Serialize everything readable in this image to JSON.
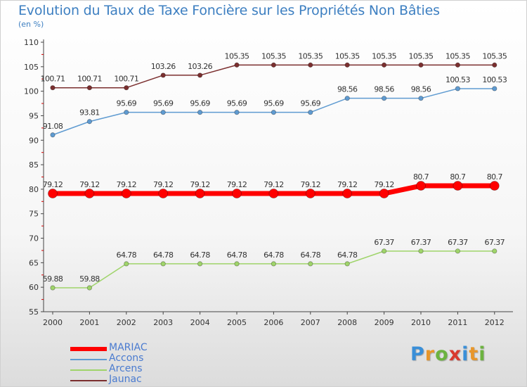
{
  "title": "Evolution du Taux de Taxe Foncière sur les Propriétés Non Bâties",
  "unit_label": "(en %)",
  "logo": {
    "letters": [
      "P",
      "r",
      "o",
      "x",
      "i",
      "t",
      "i"
    ],
    "colors": [
      "#3a8fd8",
      "#e8962a",
      "#6cb33f",
      "#d93a2f",
      "#3a8fd8",
      "#e8962a",
      "#6cb33f"
    ]
  },
  "chart_data": {
    "type": "line",
    "title": "Evolution du Taux de Taxe Foncière sur les Propriétés Non Bâties",
    "ylabel": "(en %)",
    "xlabel": "",
    "x": [
      "2000",
      "2001",
      "2002",
      "2003",
      "2004",
      "2005",
      "2006",
      "2007",
      "2008",
      "2009",
      "2010",
      "2011",
      "2012"
    ],
    "ylim": [
      55,
      110
    ],
    "yticks": [
      "55",
      "60",
      "65",
      "70",
      "75",
      "80",
      "85",
      "90",
      "95",
      "100",
      "105",
      "110"
    ],
    "grid": false,
    "legend_position": "bottom-left",
    "series": [
      {
        "name": "MARIAC",
        "color": "#ff0000",
        "values": [
          79.12,
          79.12,
          79.12,
          79.12,
          79.12,
          79.12,
          79.12,
          79.12,
          79.12,
          79.12,
          80.7,
          80.7,
          80.7
        ],
        "labels": [
          "79.12",
          "79.12",
          "79.12",
          "79.12",
          "79.12",
          "79.12",
          "79.12",
          "79.12",
          "79.12",
          "79.12",
          "80.7",
          "80.7",
          "80.7"
        ]
      },
      {
        "name": "Accons",
        "color": "#5f9bd1",
        "values": [
          91.08,
          93.81,
          95.69,
          95.69,
          95.69,
          95.69,
          95.69,
          95.69,
          98.56,
          98.56,
          98.56,
          100.53,
          100.53
        ],
        "labels": [
          "91.08",
          "93.81",
          "95.69",
          "95.69",
          "95.69",
          "95.69",
          "95.69",
          "95.69",
          "98.56",
          "98.56",
          "98.56",
          "100.53",
          "100.53"
        ]
      },
      {
        "name": "Arcens",
        "color": "#9fd46a",
        "values": [
          59.88,
          59.88,
          64.78,
          64.78,
          64.78,
          64.78,
          64.78,
          64.78,
          64.78,
          67.37,
          67.37,
          67.37,
          67.37
        ],
        "labels": [
          "59.88",
          "59.88",
          "64.78",
          "64.78",
          "64.78",
          "64.78",
          "64.78",
          "64.78",
          "64.78",
          "67.37",
          "67.37",
          "67.37",
          "67.37"
        ]
      },
      {
        "name": "Jaunac",
        "color": "#7b2f2f",
        "values": [
          100.71,
          100.71,
          100.71,
          103.26,
          103.26,
          105.35,
          105.35,
          105.35,
          105.35,
          105.35,
          105.35,
          105.35,
          105.35
        ],
        "labels": [
          "100.71",
          "100.71",
          "100.71",
          "103.26",
          "103.26",
          "105.35",
          "105.35",
          "105.35",
          "105.35",
          "105.35",
          "105.35",
          "105.35",
          "105.35"
        ]
      }
    ]
  }
}
